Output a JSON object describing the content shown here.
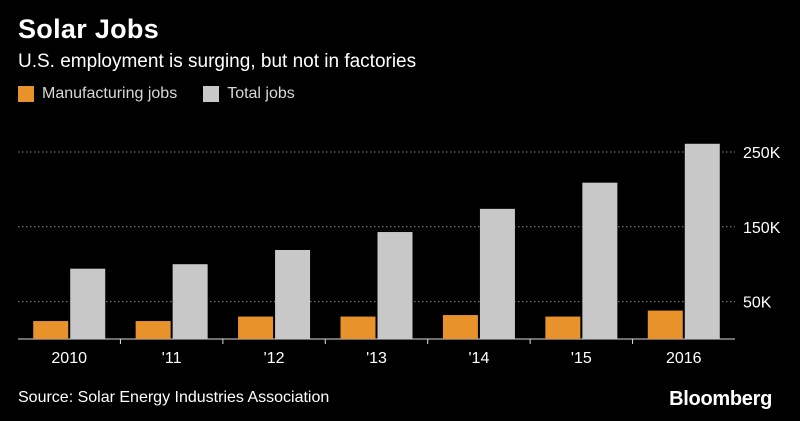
{
  "chart_data": {
    "type": "bar",
    "title": "Solar Jobs",
    "subtitle": "U.S. employment is surging, but not in factories",
    "categories": [
      "2010",
      "'11",
      "'12",
      "'13",
      "'14",
      "'15",
      "2016"
    ],
    "series": [
      {
        "name": "Manufacturing jobs",
        "color": "#e8922c",
        "values": [
          24000,
          24000,
          30000,
          30000,
          32000,
          30000,
          38000
        ]
      },
      {
        "name": "Total jobs",
        "color": "#c8c8c8",
        "values": [
          94000,
          100000,
          119000,
          143000,
          174000,
          209000,
          261000
        ]
      }
    ],
    "y_ticks": [
      50000,
      150000,
      250000
    ],
    "y_tick_labels": [
      "50K",
      "150K",
      "250K"
    ],
    "ylim": [
      0,
      265000
    ],
    "grid": true,
    "y_axis_side": "right",
    "legend_position": "top-left",
    "source": "Source: Solar Energy Industries Association",
    "brand": "Bloomberg"
  }
}
